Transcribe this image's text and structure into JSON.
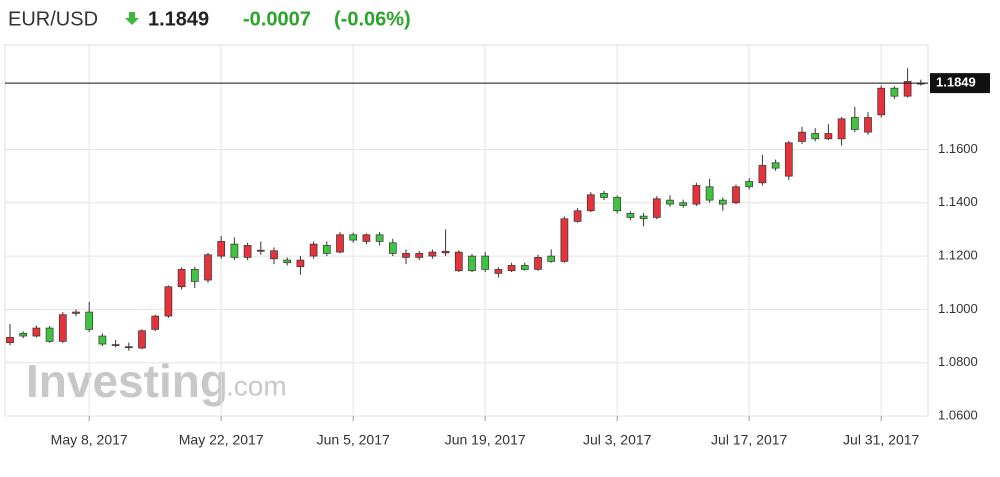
{
  "header": {
    "symbol": "EUR/USD",
    "price": "1.1849",
    "change": "-0.0007",
    "change_pct": "(-0.06%)"
  },
  "chart_data": {
    "type": "candlestick",
    "watermark": {
      "name": "Investing",
      "suffix": ".com"
    },
    "categories": [
      null,
      null,
      null,
      null,
      null,
      null,
      "May 8, 2017",
      null,
      null,
      null,
      null,
      null,
      null,
      null,
      null,
      null,
      "May 22, 2017",
      null,
      null,
      null,
      null,
      null,
      null,
      null,
      null,
      null,
      "Jun 5, 2017",
      null,
      null,
      null,
      null,
      null,
      null,
      null,
      null,
      null,
      "Jun 19, 2017",
      null,
      null,
      null,
      null,
      null,
      null,
      null,
      null,
      null,
      "Jul 3, 2017",
      null,
      null,
      null,
      null,
      null,
      null,
      null,
      null,
      null,
      "Jul 17, 2017",
      null,
      null,
      null,
      null,
      null,
      null,
      null,
      null,
      null,
      "Jul 31, 2017",
      null,
      null,
      null
    ],
    "open": [
      1.0895,
      1.09,
      1.093,
      1.088,
      1.098,
      1.099,
      1.0925,
      1.087,
      1.0868,
      1.086,
      1.092,
      1.0975,
      1.1085,
      1.115,
      1.1105,
      1.1205,
      1.1255,
      1.1195,
      1.124,
      1.1222,
      1.122,
      1.1175,
      1.1185,
      1.1245,
      1.121,
      1.128,
      1.126,
      1.128,
      1.1255,
      1.121,
      1.121,
      1.121,
      1.1215,
      1.1218,
      1.1215,
      1.1145,
      1.115,
      1.115,
      1.1165,
      1.115,
      1.1195,
      1.118,
      1.134,
      1.137,
      1.143,
      1.142,
      1.137,
      1.1345,
      1.134,
      1.1415,
      1.1395,
      1.139,
      1.1465,
      1.141,
      1.1395,
      1.146,
      1.146,
      1.154,
      1.153,
      1.1625,
      1.1665,
      1.164,
      1.166,
      1.1715,
      1.1675,
      1.172,
      1.183,
      1.18,
      1.1855,
      1.1849
    ],
    "high": [
      1.0945,
      1.0918,
      1.094,
      1.0938,
      1.099,
      1.1,
      1.1028,
      1.091,
      1.0885,
      1.0875,
      1.0925,
      1.098,
      1.109,
      1.1158,
      1.116,
      1.1212,
      1.1275,
      1.127,
      1.125,
      1.1255,
      1.1232,
      1.1195,
      1.12,
      1.1255,
      1.1255,
      1.129,
      1.1288,
      1.1285,
      1.129,
      1.1265,
      1.1225,
      1.122,
      1.1225,
      1.13,
      1.1222,
      1.1208,
      1.1215,
      1.1158,
      1.1175,
      1.1175,
      1.1205,
      1.1225,
      1.1348,
      1.138,
      1.144,
      1.1445,
      1.1428,
      1.1368,
      1.1362,
      1.1425,
      1.1428,
      1.1412,
      1.1475,
      1.149,
      1.142,
      1.1468,
      1.1492,
      1.158,
      1.1562,
      1.1632,
      1.1685,
      1.168,
      1.1695,
      1.1722,
      1.176,
      1.174,
      1.184,
      1.1838,
      1.1905,
      1.1862
    ],
    "low": [
      1.0865,
      1.0892,
      1.0895,
      1.0875,
      1.0875,
      1.0975,
      1.0915,
      1.0862,
      1.0858,
      1.0845,
      1.085,
      1.0918,
      1.0968,
      1.1075,
      1.108,
      1.11,
      1.119,
      1.1185,
      1.1185,
      1.1205,
      1.117,
      1.1165,
      1.113,
      1.119,
      1.12,
      1.121,
      1.125,
      1.1245,
      1.124,
      1.12,
      1.117,
      1.1185,
      1.119,
      1.12,
      1.114,
      1.114,
      1.114,
      1.112,
      1.114,
      1.1145,
      1.1145,
      1.1175,
      1.1175,
      1.1325,
      1.1365,
      1.141,
      1.136,
      1.1335,
      1.1312,
      1.1338,
      1.1385,
      1.1382,
      1.1388,
      1.14,
      1.137,
      1.1395,
      1.145,
      1.1465,
      1.152,
      1.1485,
      1.162,
      1.163,
      1.1635,
      1.1615,
      1.1665,
      1.1655,
      1.172,
      1.179,
      1.1795,
      1.184
    ],
    "close": [
      1.0875,
      1.091,
      1.09,
      1.093,
      1.088,
      1.0985,
      1.099,
      1.09,
      1.0866,
      1.0858,
      1.0855,
      1.0925,
      1.0975,
      1.1085,
      1.115,
      1.111,
      1.12,
      1.1245,
      1.1195,
      1.1218,
      1.119,
      1.1185,
      1.116,
      1.12,
      1.124,
      1.1215,
      1.128,
      1.1255,
      1.128,
      1.125,
      1.1195,
      1.1195,
      1.12,
      1.1212,
      1.1145,
      1.12,
      1.12,
      1.1135,
      1.1145,
      1.1165,
      1.115,
      1.12,
      1.118,
      1.133,
      1.137,
      1.1435,
      1.142,
      1.136,
      1.135,
      1.1345,
      1.141,
      1.14,
      1.1395,
      1.146,
      1.141,
      1.14,
      1.148,
      1.1475,
      1.155,
      1.15,
      1.163,
      1.166,
      1.164,
      1.164,
      1.172,
      1.1665,
      1.173,
      1.183,
      1.18,
      1.1849
    ],
    "up_color": "#3fc43f",
    "down_color": "#e5323b",
    "last_price": 1.1849,
    "ylim": [
      1.06,
      1.1992
    ],
    "yticks": [
      {
        "value": 1.06,
        "label": "1.0600"
      },
      {
        "value": 1.08,
        "label": "1.0800"
      },
      {
        "value": 1.1,
        "label": "1.1000"
      },
      {
        "value": 1.12,
        "label": "1.1200"
      },
      {
        "value": 1.14,
        "label": "1.1400"
      },
      {
        "value": 1.16,
        "label": "1.1600"
      }
    ],
    "grid": true
  }
}
